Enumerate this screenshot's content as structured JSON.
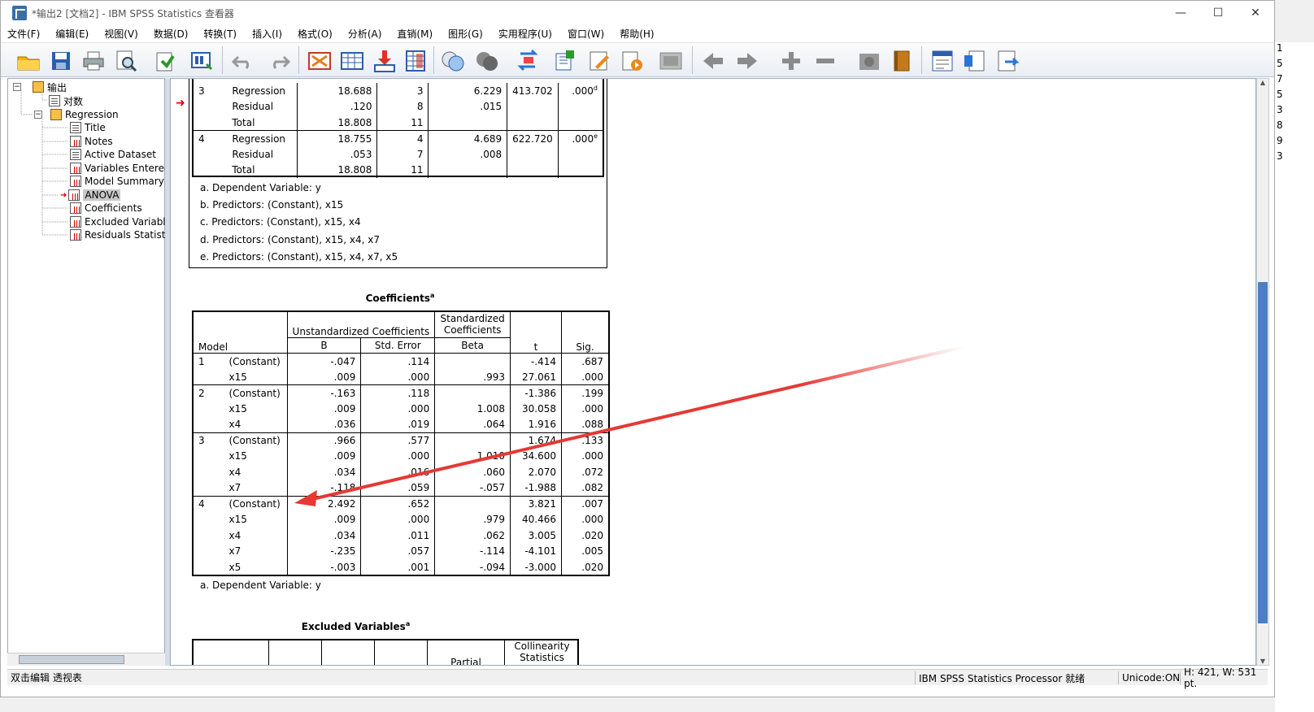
{
  "window": {
    "title": "*输出2 [文档2] - IBM SPSS Statistics 查看器",
    "min": "—",
    "max": "☐",
    "close": "✕"
  },
  "menu": [
    "文件(F)",
    "编辑(E)",
    "视图(V)",
    "数据(D)",
    "转换(T)",
    "插入(I)",
    "格式(O)",
    "分析(A)",
    "直销(M)",
    "图形(G)",
    "实用程序(U)",
    "窗口(W)",
    "帮助(H)"
  ],
  "tree": {
    "root": "输出",
    "log": "对数",
    "regression": "Regression",
    "items": [
      "Title",
      "Notes",
      "Active Dataset",
      "Variables Entered",
      "Model Summary",
      "ANOVA",
      "Coefficients",
      "Excluded Variable",
      "Residuals Statisti"
    ],
    "selected": "ANOVA"
  },
  "anova": {
    "rows": [
      {
        "model": "3",
        "label": "Regression",
        "ss": "18.688",
        "df": "3",
        "ms": "6.229",
        "f": "413.702",
        "sig": ".000",
        "sup": "d"
      },
      {
        "model": "",
        "label": "Residual",
        "ss": ".120",
        "df": "8",
        "ms": ".015",
        "f": "",
        "sig": "",
        "sup": ""
      },
      {
        "model": "",
        "label": "Total",
        "ss": "18.808",
        "df": "11",
        "ms": "",
        "f": "",
        "sig": "",
        "sup": ""
      },
      {
        "model": "4",
        "label": "Regression",
        "ss": "18.755",
        "df": "4",
        "ms": "4.689",
        "f": "622.720",
        "sig": ".000",
        "sup": "e"
      },
      {
        "model": "",
        "label": "Residual",
        "ss": ".053",
        "df": "7",
        "ms": ".008",
        "f": "",
        "sig": "",
        "sup": ""
      },
      {
        "model": "",
        "label": "Total",
        "ss": "18.808",
        "df": "11",
        "ms": "",
        "f": "",
        "sig": "",
        "sup": ""
      }
    ],
    "footnotes": [
      "a. Dependent Variable: y",
      "b. Predictors: (Constant), x15",
      "c. Predictors: (Constant), x15, x4",
      "d. Predictors: (Constant), x15, x4, x7",
      "e. Predictors: (Constant), x15, x4, x7, x5"
    ]
  },
  "coefficients": {
    "title": "Coefficients",
    "title_sup": "a",
    "h_model": "Model",
    "h_unstd": "Unstandardized Coefficients",
    "h_std": "Standardized Coefficients",
    "h_b": "B",
    "h_se": "Std. Error",
    "h_beta": "Beta",
    "h_t": "t",
    "h_sig": "Sig.",
    "rows": [
      {
        "model": "1",
        "var": "(Constant)",
        "b": "-.047",
        "se": ".114",
        "beta": "",
        "t": "-.414",
        "sig": ".687"
      },
      {
        "model": "",
        "var": "x15",
        "b": ".009",
        "se": ".000",
        "beta": ".993",
        "t": "27.061",
        "sig": ".000"
      },
      {
        "model": "2",
        "var": "(Constant)",
        "b": "-.163",
        "se": ".118",
        "beta": "",
        "t": "-1.386",
        "sig": ".199"
      },
      {
        "model": "",
        "var": "x15",
        "b": ".009",
        "se": ".000",
        "beta": "1.008",
        "t": "30.058",
        "sig": ".000"
      },
      {
        "model": "",
        "var": "x4",
        "b": ".036",
        "se": ".019",
        "beta": ".064",
        "t": "1.916",
        "sig": ".088"
      },
      {
        "model": "3",
        "var": "(Constant)",
        "b": ".966",
        "se": ".577",
        "beta": "",
        "t": "1.674",
        "sig": ".133"
      },
      {
        "model": "",
        "var": "x15",
        "b": ".009",
        "se": ".000",
        "beta": "1.010",
        "t": "34.600",
        "sig": ".000"
      },
      {
        "model": "",
        "var": "x4",
        "b": ".034",
        "se": ".016",
        "beta": ".060",
        "t": "2.070",
        "sig": ".072"
      },
      {
        "model": "",
        "var": "x7",
        "b": "-.118",
        "se": ".059",
        "beta": "-.057",
        "t": "-1.988",
        "sig": ".082"
      },
      {
        "model": "4",
        "var": "(Constant)",
        "b": "2.492",
        "se": ".652",
        "beta": "",
        "t": "3.821",
        "sig": ".007"
      },
      {
        "model": "",
        "var": "x15",
        "b": ".009",
        "se": ".000",
        "beta": ".979",
        "t": "40.466",
        "sig": ".000"
      },
      {
        "model": "",
        "var": "x4",
        "b": ".034",
        "se": ".011",
        "beta": ".062",
        "t": "3.005",
        "sig": ".020"
      },
      {
        "model": "",
        "var": "x7",
        "b": "-.235",
        "se": ".057",
        "beta": "-.114",
        "t": "-4.101",
        "sig": ".005"
      },
      {
        "model": "",
        "var": "x5",
        "b": "-.003",
        "se": ".001",
        "beta": "-.094",
        "t": "-3.000",
        "sig": ".020"
      }
    ],
    "footnote": "a. Dependent Variable: y"
  },
  "excluded": {
    "title": "Excluded Variables",
    "title_sup": "a",
    "h_partial": "Partial",
    "h_coll": "Collinearity Statistics"
  },
  "status": {
    "left": "双击编辑 透视表",
    "processor": "IBM SPSS Statistics Processor 就绪",
    "unicode": "Unicode:ON",
    "dims": "H: 421, W: 531 pt."
  },
  "right_strip": [
    "1",
    "5",
    "7",
    "5",
    "3",
    "8",
    "9",
    "3"
  ],
  "colors": {
    "accent": "#3a6ea5",
    "arrow": "#e53935",
    "pointer": "#e00000"
  }
}
